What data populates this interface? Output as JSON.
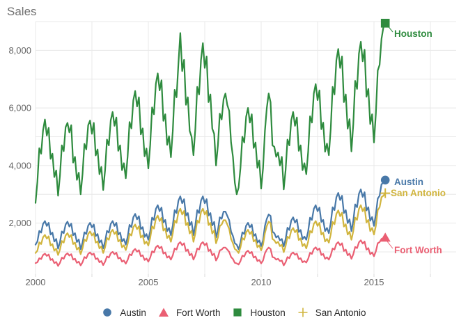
{
  "chart_data": {
    "type": "line",
    "title": "Sales",
    "frequency": "monthly",
    "x_start": "2000-01",
    "x_end": "2015-07",
    "x_axis": {
      "tick_labels": [
        "2000",
        "2005",
        "2010",
        "2015"
      ],
      "tick_years": [
        2000,
        2005,
        2010,
        2015
      ],
      "gridline_years": [
        2000,
        2002.5,
        2005,
        2007.5,
        2010,
        2012.5,
        2015,
        2017.5
      ],
      "grid": true
    },
    "y_axis": {
      "tick_labels": [
        "2,000",
        "4,000",
        "6,000",
        "8,000"
      ],
      "tick_values": [
        2000,
        4000,
        6000,
        8000
      ],
      "gridline_values": [
        1000,
        2000,
        3000,
        4000,
        5000,
        6000,
        7000,
        8000,
        9000
      ],
      "domain": [
        250,
        9000
      ],
      "grid": true
    },
    "legend": {
      "position": "bottom",
      "entries": [
        "Austin",
        "Fort Worth",
        "Houston",
        "San Antonio"
      ]
    },
    "colors": {
      "austin": "#4878a8",
      "fort_worth": "#ea5f73",
      "houston": "#2e8b3e",
      "san_antonio": "#d1b53e",
      "gridline": "#e8e8e8",
      "axis_label": "#646464",
      "title": "#707070",
      "legend_text": "#2b2b2b"
    },
    "series": [
      {
        "name": "Austin",
        "end_label": "Austin",
        "color": "#4878a8",
        "symbol": "circle",
        "values_by_year": [
          [
            1250,
            1360,
            1730,
            1670,
            1970,
            2070,
            1900,
            2010,
            1600,
            1670,
            1360,
            1450
          ],
          [
            1110,
            1340,
            1710,
            1650,
            1950,
            2050,
            1880,
            1980,
            1580,
            1650,
            1340,
            1430
          ],
          [
            1090,
            1320,
            1680,
            1620,
            1910,
            2010,
            1850,
            1950,
            1550,
            1620,
            1320,
            1400
          ],
          [
            1120,
            1360,
            1730,
            1670,
            1970,
            2070,
            1900,
            2010,
            1600,
            1670,
            1360,
            1450
          ],
          [
            1250,
            1520,
            1940,
            1860,
            2200,
            2320,
            2130,
            2240,
            1790,
            1860,
            1520,
            1620
          ],
          [
            1420,
            1720,
            2190,
            2110,
            2490,
            2620,
            2410,
            2540,
            2020,
            2110,
            1720,
            1830
          ],
          [
            1580,
            1920,
            2450,
            2350,
            2780,
            2930,
            2690,
            2830,
            2260,
            2350,
            1920,
            2040
          ],
          [
            1580,
            1920,
            2450,
            2350,
            2780,
            2930,
            2690,
            2830,
            2260,
            2350,
            1920,
            2040
          ],
          [
            1500,
            1750,
            2200,
            2150,
            2400,
            2400,
            2250,
            2100,
            1700,
            1550,
            1300,
            1250
          ],
          [
            1090,
            1320,
            1680,
            1620,
            1910,
            2010,
            1850,
            1950,
            1550,
            1620,
            1320,
            1400
          ],
          [
            1200,
            1400,
            1900,
            2150,
            2300,
            2250,
            1700,
            1650,
            1500,
            1550,
            1400,
            1450
          ],
          [
            1190,
            1440,
            1840,
            1760,
            2090,
            2200,
            2020,
            2120,
            1690,
            1760,
            1440,
            1530
          ],
          [
            1420,
            1720,
            2190,
            2110,
            2490,
            2620,
            2410,
            2540,
            2040,
            2110,
            1720,
            1830
          ],
          [
            1650,
            2000,
            2550,
            2450,
            2900,
            3050,
            2800,
            2950,
            2350,
            2450,
            2000,
            2130
          ],
          [
            1720,
            2080,
            2650,
            2550,
            3020,
            3170,
            2910,
            3070,
            2440,
            2550,
            2080,
            2210
          ],
          [
            1900,
            2300,
            2850,
            2950,
            3350,
            3400,
            3494
          ]
        ]
      },
      {
        "name": "Fort Worth",
        "end_label": "Fort Worth",
        "color": "#ea5f73",
        "symbol": "triangle",
        "values_by_year": [
          [
            610,
            640,
            780,
            750,
            890,
            940,
            860,
            910,
            720,
            750,
            610,
            650
          ],
          [
            510,
            620,
            800,
            760,
            900,
            950,
            870,
            920,
            730,
            760,
            620,
            660
          ],
          [
            530,
            640,
            820,
            780,
            930,
            980,
            900,
            940,
            750,
            780,
            640,
            680
          ],
          [
            540,
            660,
            840,
            800,
            950,
            1000,
            920,
            970,
            770,
            800,
            660,
            700
          ],
          [
            590,
            720,
            920,
            880,
            1040,
            1100,
            1010,
            1060,
            850,
            880,
            720,
            770
          ],
          [
            660,
            800,
            1020,
            980,
            1160,
            1220,
            1120,
            1180,
            940,
            980,
            800,
            850
          ],
          [
            730,
            880,
            1120,
            1080,
            1280,
            1340,
            1230,
            1300,
            1030,
            1080,
            880,
            940
          ],
          [
            730,
            880,
            1120,
            1080,
            1280,
            1340,
            1230,
            1300,
            1030,
            1080,
            880,
            940
          ],
          [
            700,
            820,
            1050,
            1080,
            1150,
            1150,
            1080,
            1000,
            820,
            750,
            620,
            600
          ],
          [
            560,
            680,
            870,
            840,
            990,
            1040,
            950,
            1000,
            800,
            840,
            680,
            720
          ],
          [
            600,
            700,
            950,
            1080,
            1150,
            1100,
            820,
            800,
            730,
            760,
            680,
            700
          ],
          [
            530,
            640,
            820,
            780,
            930,
            980,
            900,
            940,
            750,
            780,
            640,
            680
          ],
          [
            630,
            760,
            970,
            930,
            1100,
            1160,
            1060,
            1120,
            890,
            930,
            760,
            810
          ],
          [
            730,
            880,
            1120,
            1080,
            1280,
            1340,
            1230,
            1300,
            1030,
            1080,
            880,
            940
          ],
          [
            760,
            920,
            1170,
            1130,
            1330,
            1400,
            1290,
            1360,
            1080,
            1130,
            920,
            980
          ],
          [
            850,
            1020,
            1300,
            1340,
            1450,
            1480,
            1490
          ]
        ]
      },
      {
        "name": "Houston",
        "end_label": "Houston",
        "color": "#2e8b3e",
        "symbol": "square",
        "values_by_year": [
          [
            2700,
            3430,
            4600,
            4410,
            5220,
            5600,
            5040,
            5310,
            4230,
            4410,
            3600,
            3830
          ],
          [
            2950,
            3650,
            4700,
            4500,
            5330,
            5480,
            5150,
            5400,
            4100,
            4300,
            3500,
            3750
          ],
          [
            3000,
            3700,
            4750,
            4560,
            5400,
            5560,
            5100,
            5480,
            4350,
            4560,
            3700,
            3950
          ],
          [
            3150,
            3840,
            4900,
            4700,
            5570,
            5860,
            5380,
            5670,
            4510,
            4700,
            3840,
            4080
          ],
          [
            3560,
            4320,
            5510,
            5290,
            6260,
            6590,
            6050,
            6370,
            5080,
            5290,
            4320,
            4590
          ],
          [
            3900,
            4720,
            6020,
            5780,
            6840,
            7200,
            6610,
            6960,
            5550,
            5780,
            4720,
            5020
          ],
          [
            4290,
            5200,
            6630,
            6370,
            7540,
            8600,
            7280,
            7670,
            6110,
            6370,
            5200,
            5000
          ],
          [
            4360,
            5280,
            6730,
            6470,
            7660,
            8250,
            7390,
            7790,
            6200,
            6470,
            5280,
            5100
          ],
          [
            4000,
            4700,
            5800,
            5600,
            6300,
            6500,
            6100,
            5900,
            4800,
            4300,
            3400,
            3000
          ],
          [
            3230,
            3920,
            5000,
            4800,
            5690,
            6000,
            5490,
            5780,
            4610,
            4800,
            3920,
            4170
          ],
          [
            3200,
            3900,
            5200,
            6000,
            6500,
            6200,
            4700,
            4650,
            4300,
            4450,
            4000,
            4300
          ],
          [
            3170,
            3840,
            4900,
            4700,
            5570,
            5860,
            5380,
            5670,
            4510,
            4700,
            3840,
            4080
          ],
          [
            3700,
            4480,
            5710,
            5490,
            6500,
            6830,
            6270,
            6610,
            5260,
            5490,
            4480,
            4760
          ],
          [
            4360,
            5280,
            6730,
            6470,
            7660,
            8050,
            7390,
            7790,
            6200,
            6470,
            5280,
            5610
          ],
          [
            4490,
            5440,
            6940,
            6660,
            7890,
            8300,
            7620,
            8020,
            6390,
            6660,
            5440,
            5780
          ],
          [
            4800,
            5800,
            7300,
            7500,
            8400,
            8800,
            8945
          ]
        ]
      },
      {
        "name": "San Antonio",
        "end_label": "San Antonio",
        "color": "#d1b53e",
        "symbol": "plus",
        "values_by_year": [
          [
            960,
            1040,
            1330,
            1270,
            1510,
            1590,
            1460,
            1540,
            1220,
            1270,
            1040,
            1110
          ],
          [
            890,
            1080,
            1380,
            1320,
            1570,
            1650,
            1510,
            1590,
            1270,
            1320,
            1080,
            1150
          ],
          [
            920,
            1120,
            1430,
            1370,
            1620,
            1710,
            1570,
            1650,
            1320,
            1370,
            1120,
            1190
          ],
          [
            960,
            1160,
            1480,
            1420,
            1680,
            1770,
            1620,
            1710,
            1360,
            1420,
            1160,
            1230
          ],
          [
            1060,
            1280,
            1630,
            1570,
            1860,
            1950,
            1790,
            1890,
            1500,
            1570,
            1280,
            1360
          ],
          [
            1220,
            1480,
            1890,
            1810,
            2150,
            2260,
            2070,
            2180,
            1740,
            1810,
            1480,
            1570
          ],
          [
            1350,
            1640,
            2090,
            2010,
            2380,
            2500,
            2300,
            2420,
            1930,
            2010,
            1640,
            1740
          ],
          [
            1350,
            1640,
            2090,
            2010,
            2380,
            2500,
            2300,
            2420,
            1930,
            2010,
            1640,
            1740
          ],
          [
            1300,
            1500,
            1900,
            1950,
            2100,
            2100,
            1950,
            1800,
            1450,
            1300,
            1100,
            1050
          ],
          [
            960,
            1160,
            1480,
            1420,
            1680,
            1770,
            1620,
            1710,
            1360,
            1420,
            1160,
            1230
          ],
          [
            1050,
            1250,
            1650,
            1900,
            2050,
            2000,
            1450,
            1400,
            1300,
            1350,
            1200,
            1250
          ],
          [
            990,
            1200,
            1530,
            1470,
            1740,
            1830,
            1680,
            1770,
            1410,
            1470,
            1200,
            1280
          ],
          [
            1120,
            1360,
            1730,
            1670,
            1970,
            2070,
            1900,
            2010,
            1600,
            1670,
            1360,
            1450
          ],
          [
            1320,
            1600,
            2040,
            1960,
            2320,
            2440,
            2240,
            2360,
            1880,
            1960,
            1600,
            1700
          ],
          [
            1420,
            1720,
            2190,
            2110,
            2490,
            2620,
            2410,
            2540,
            2020,
            2110,
            1720,
            1830
          ],
          [
            1600,
            1900,
            2450,
            2550,
            2900,
            2950,
            3040
          ]
        ]
      }
    ]
  }
}
